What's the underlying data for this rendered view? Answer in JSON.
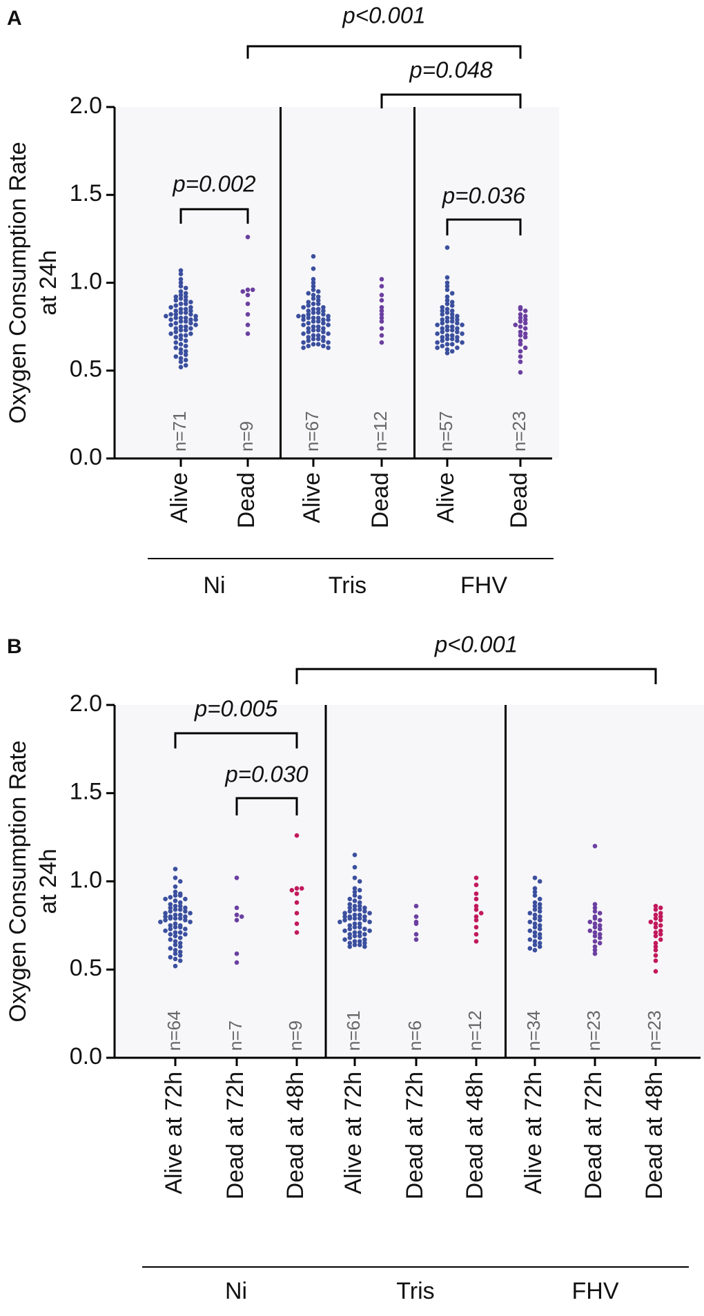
{
  "chart_data": [
    {
      "type": "dotplot",
      "panel_label": "A",
      "ylabel": [
        "Oxygen Consumption Rate",
        "at 24h"
      ],
      "ylim": [
        0,
        2
      ],
      "yticks": [
        {
          "value": 0,
          "label": "0.0"
        },
        0.5,
        {
          "value": 1,
          "label": "1.0"
        },
        1.5,
        {
          "value": 2,
          "label": "2.0"
        }
      ],
      "groups": [
        {
          "name": "Ni",
          "series": [
            {
              "name": "Alive",
              "color": "#3b4f9e",
              "n_label": "n=71",
              "values": [
                1.07,
                1.05,
                1.02,
                1.0,
                0.98,
                0.97,
                0.95,
                0.94,
                0.93,
                0.92,
                0.92,
                0.91,
                0.9,
                0.9,
                0.89,
                0.88,
                0.88,
                0.87,
                0.86,
                0.86,
                0.85,
                0.85,
                0.84,
                0.84,
                0.83,
                0.83,
                0.82,
                0.82,
                0.82,
                0.81,
                0.81,
                0.8,
                0.8,
                0.8,
                0.79,
                0.79,
                0.79,
                0.78,
                0.78,
                0.77,
                0.77,
                0.76,
                0.76,
                0.75,
                0.75,
                0.74,
                0.74,
                0.73,
                0.73,
                0.72,
                0.71,
                0.71,
                0.7,
                0.7,
                0.69,
                0.68,
                0.67,
                0.66,
                0.65,
                0.64,
                0.63,
                0.62,
                0.61,
                0.6,
                0.59,
                0.58,
                0.57,
                0.56,
                0.55,
                0.53,
                0.52
              ]
            },
            {
              "name": "Dead",
              "color": "#6b3fa0",
              "n_label": "n=9",
              "values": [
                1.26,
                0.96,
                0.96,
                0.95,
                0.93,
                0.88,
                0.82,
                0.76,
                0.71
              ]
            }
          ]
        },
        {
          "name": "Tris",
          "series": [
            {
              "name": "Alive",
              "color": "#3b4f9e",
              "n_label": "n=67",
              "values": [
                1.15,
                1.08,
                1.02,
                1.0,
                0.98,
                0.96,
                0.95,
                0.94,
                0.93,
                0.92,
                0.91,
                0.9,
                0.89,
                0.88,
                0.88,
                0.87,
                0.86,
                0.86,
                0.85,
                0.85,
                0.84,
                0.84,
                0.83,
                0.83,
                0.82,
                0.82,
                0.81,
                0.81,
                0.81,
                0.8,
                0.8,
                0.8,
                0.79,
                0.79,
                0.79,
                0.78,
                0.78,
                0.77,
                0.77,
                0.76,
                0.76,
                0.75,
                0.75,
                0.74,
                0.74,
                0.73,
                0.73,
                0.72,
                0.72,
                0.71,
                0.71,
                0.7,
                0.7,
                0.69,
                0.69,
                0.68,
                0.68,
                0.67,
                0.67,
                0.66,
                0.66,
                0.65,
                0.65,
                0.64,
                0.64,
                0.63,
                0.63
              ]
            },
            {
              "name": "Dead",
              "color": "#6b3fa0",
              "n_label": "n=12",
              "values": [
                1.02,
                0.98,
                0.93,
                0.9,
                0.86,
                0.84,
                0.82,
                0.8,
                0.78,
                0.74,
                0.7,
                0.66
              ]
            }
          ]
        },
        {
          "name": "FHV",
          "series": [
            {
              "name": "Alive",
              "color": "#3b4f9e",
              "n_label": "n=57",
              "values": [
                1.2,
                1.03,
                1.0,
                0.98,
                0.96,
                0.94,
                0.92,
                0.9,
                0.89,
                0.88,
                0.87,
                0.86,
                0.85,
                0.84,
                0.84,
                0.83,
                0.82,
                0.82,
                0.81,
                0.8,
                0.8,
                0.79,
                0.79,
                0.78,
                0.78,
                0.77,
                0.77,
                0.76,
                0.76,
                0.75,
                0.75,
                0.74,
                0.74,
                0.73,
                0.73,
                0.72,
                0.72,
                0.71,
                0.71,
                0.7,
                0.7,
                0.69,
                0.69,
                0.68,
                0.68,
                0.67,
                0.67,
                0.66,
                0.66,
                0.65,
                0.65,
                0.64,
                0.63,
                0.63,
                0.62,
                0.61,
                0.6
              ]
            },
            {
              "name": "Dead",
              "color": "#6b3fa0",
              "n_label": "n=23",
              "values": [
                0.86,
                0.85,
                0.84,
                0.82,
                0.81,
                0.8,
                0.79,
                0.78,
                0.77,
                0.76,
                0.75,
                0.74,
                0.72,
                0.71,
                0.7,
                0.69,
                0.67,
                0.65,
                0.63,
                0.61,
                0.58,
                0.55,
                0.49
              ]
            }
          ]
        }
      ],
      "annotations": [
        {
          "text": "p<0.001"
        },
        {
          "text": "p=0.048"
        },
        {
          "text": "p=0.002"
        },
        {
          "text": "p=0.036"
        }
      ]
    },
    {
      "type": "dotplot",
      "panel_label": "B",
      "ylabel": [
        "Oxygen Consumption Rate",
        "at 24h"
      ],
      "ylim": [
        0,
        2
      ],
      "yticks": [
        {
          "value": 0,
          "label": "0.0"
        },
        0.5,
        {
          "value": 1,
          "label": "1.0"
        },
        1.5,
        {
          "value": 2,
          "label": "2.0"
        }
      ],
      "groups": [
        {
          "name": "Ni",
          "series": [
            {
              "name": "Alive at 72h",
              "color": "#3b4f9e",
              "n_label": "n=64",
              "values": [
                1.07,
                1.02,
                1.0,
                0.97,
                0.94,
                0.93,
                0.92,
                0.92,
                0.91,
                0.9,
                0.9,
                0.89,
                0.88,
                0.87,
                0.86,
                0.86,
                0.85,
                0.85,
                0.84,
                0.84,
                0.83,
                0.83,
                0.82,
                0.82,
                0.81,
                0.81,
                0.8,
                0.8,
                0.8,
                0.79,
                0.79,
                0.79,
                0.78,
                0.78,
                0.77,
                0.77,
                0.76,
                0.75,
                0.75,
                0.74,
                0.74,
                0.73,
                0.73,
                0.72,
                0.71,
                0.71,
                0.7,
                0.7,
                0.69,
                0.68,
                0.67,
                0.66,
                0.65,
                0.64,
                0.63,
                0.62,
                0.61,
                0.6,
                0.59,
                0.58,
                0.57,
                0.56,
                0.55,
                0.52
              ]
            },
            {
              "name": "Dead at 72h",
              "color": "#6b3fa0",
              "n_label": "n=7",
              "values": [
                1.02,
                0.85,
                0.81,
                0.8,
                0.78,
                0.59,
                0.54
              ]
            },
            {
              "name": "Dead at 48h",
              "color": "#c2185b",
              "n_label": "n=9",
              "values": [
                1.26,
                0.96,
                0.96,
                0.95,
                0.93,
                0.88,
                0.82,
                0.76,
                0.71
              ]
            }
          ]
        },
        {
          "name": "Tris",
          "series": [
            {
              "name": "Alive at 72h",
              "color": "#3b4f9e",
              "n_label": "n=61",
              "values": [
                1.15,
                1.08,
                1.02,
                1.0,
                0.96,
                0.95,
                0.94,
                0.92,
                0.91,
                0.9,
                0.89,
                0.88,
                0.87,
                0.86,
                0.86,
                0.85,
                0.85,
                0.84,
                0.84,
                0.83,
                0.83,
                0.82,
                0.82,
                0.81,
                0.81,
                0.8,
                0.8,
                0.8,
                0.79,
                0.79,
                0.79,
                0.78,
                0.78,
                0.77,
                0.77,
                0.76,
                0.76,
                0.75,
                0.74,
                0.74,
                0.73,
                0.73,
                0.72,
                0.72,
                0.71,
                0.71,
                0.7,
                0.7,
                0.69,
                0.69,
                0.68,
                0.67,
                0.67,
                0.66,
                0.66,
                0.65,
                0.65,
                0.64,
                0.64,
                0.63,
                0.63
              ]
            },
            {
              "name": "Dead at 72h",
              "color": "#6b3fa0",
              "n_label": "n=6",
              "values": [
                0.86,
                0.8,
                0.77,
                0.76,
                0.7,
                0.67
              ]
            },
            {
              "name": "Dead at 48h",
              "color": "#c2185b",
              "n_label": "n=12",
              "values": [
                1.02,
                0.98,
                0.93,
                0.9,
                0.86,
                0.84,
                0.82,
                0.8,
                0.78,
                0.74,
                0.7,
                0.66
              ]
            }
          ]
        },
        {
          "name": "FHV",
          "series": [
            {
              "name": "Alive at 72h",
              "color": "#3b4f9e",
              "n_label": "n=34",
              "values": [
                1.02,
                1.0,
                0.96,
                0.94,
                0.92,
                0.9,
                0.88,
                0.87,
                0.86,
                0.85,
                0.84,
                0.83,
                0.82,
                0.81,
                0.8,
                0.79,
                0.78,
                0.77,
                0.76,
                0.75,
                0.74,
                0.73,
                0.72,
                0.71,
                0.7,
                0.69,
                0.68,
                0.67,
                0.66,
                0.65,
                0.64,
                0.63,
                0.62,
                0.61
              ]
            },
            {
              "name": "Dead at 72h",
              "color": "#6b3fa0",
              "n_label": "n=23",
              "values": [
                1.2,
                0.87,
                0.85,
                0.83,
                0.82,
                0.8,
                0.79,
                0.78,
                0.77,
                0.76,
                0.75,
                0.74,
                0.73,
                0.72,
                0.71,
                0.7,
                0.69,
                0.68,
                0.66,
                0.65,
                0.63,
                0.61,
                0.59
              ]
            },
            {
              "name": "Dead at 48h",
              "color": "#c2185b",
              "n_label": "n=23",
              "values": [
                0.86,
                0.85,
                0.84,
                0.82,
                0.81,
                0.8,
                0.79,
                0.78,
                0.77,
                0.76,
                0.75,
                0.74,
                0.72,
                0.71,
                0.7,
                0.69,
                0.67,
                0.65,
                0.63,
                0.61,
                0.58,
                0.55,
                0.49
              ]
            }
          ]
        }
      ],
      "annotations": [
        {
          "text": "p<0.001"
        },
        {
          "text": "p=0.005"
        },
        {
          "text": "p=0.030"
        }
      ]
    }
  ]
}
